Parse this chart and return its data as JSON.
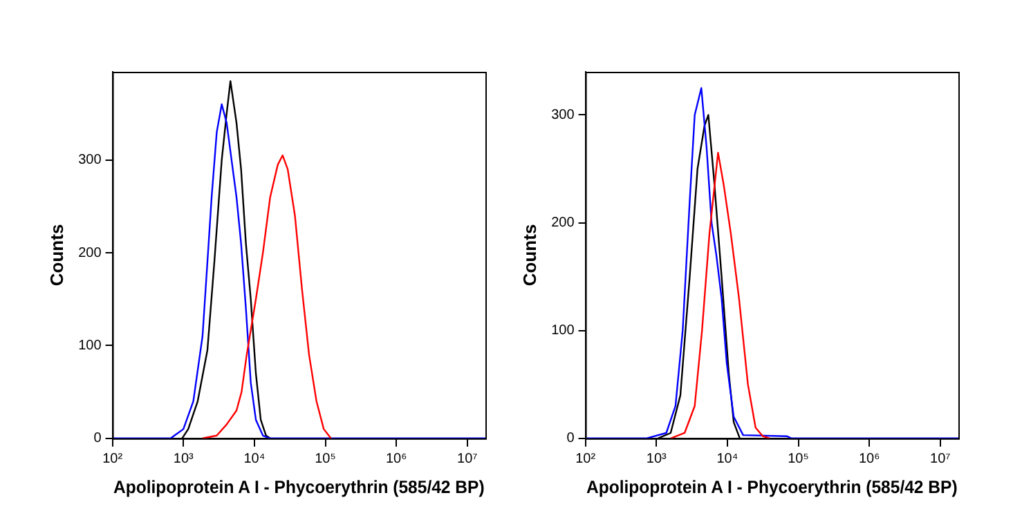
{
  "chart_data": [
    {
      "type": "line",
      "xlabel": "Apolipoprotein A I - Phycoerythrin (585/42 BP)",
      "ylabel": "Counts",
      "log": "x",
      "grid": false,
      "legend": false,
      "marker": "none",
      "line_style": "solid",
      "xlim": [
        100,
        18000000
      ],
      "ylim": [
        0,
        395
      ],
      "xticks": [
        {
          "value": 100,
          "label": "10²"
        },
        {
          "value": 1000,
          "label": "10³"
        },
        {
          "value": 10000,
          "label": "10⁴"
        },
        {
          "value": 100000,
          "label": "10⁵"
        },
        {
          "value": 1000000,
          "label": "10⁶"
        },
        {
          "value": 10000000,
          "label": "10⁷"
        }
      ],
      "yticks": [
        0,
        100,
        200,
        300
      ],
      "series": [
        {
          "color": "#ff0000",
          "x": [
            1860,
            2950,
            4070,
            5600,
            6600,
            7800,
            10500,
            13200,
            16700,
            21400,
            25000,
            29500,
            37300,
            47000,
            59000,
            75000,
            95000,
            120000
          ],
          "values": [
            0,
            3,
            15,
            30,
            50,
            90,
            150,
            200,
            260,
            295,
            305,
            290,
            240,
            160,
            90,
            40,
            10,
            0
          ]
        },
        {
          "color": "#0000ff",
          "x": [
            100,
            660,
            1000,
            1380,
            1860,
            2180,
            2500,
            2950,
            3470,
            4070,
            4770,
            5600,
            6500,
            7600,
            8900,
            10500,
            13200,
            16700,
            18000000
          ],
          "values": [
            0,
            0,
            10,
            40,
            110,
            190,
            260,
            330,
            360,
            340,
            300,
            260,
            210,
            140,
            60,
            20,
            3,
            0,
            0
          ]
        },
        {
          "color": "#000000",
          "x": [
            960,
            1170,
            1590,
            2180,
            2730,
            3470,
            4070,
            4600,
            5600,
            6500,
            7600,
            8900,
            10500,
            12300,
            14600,
            16700
          ],
          "values": [
            0,
            10,
            40,
            95,
            190,
            300,
            350,
            385,
            340,
            290,
            210,
            150,
            70,
            20,
            3,
            0
          ]
        }
      ]
    },
    {
      "type": "line",
      "xlabel": "Apolipoprotein A I - Phycoerythrin (585/42 BP)",
      "ylabel": "Counts",
      "log": "x",
      "grid": false,
      "legend": false,
      "marker": "none",
      "line_style": "solid",
      "xlim": [
        100,
        18000000
      ],
      "ylim": [
        0,
        340
      ],
      "xticks": [
        {
          "value": 100,
          "label": "10²"
        },
        {
          "value": 1000,
          "label": "10³"
        },
        {
          "value": 10000,
          "label": "10⁴"
        },
        {
          "value": 100000,
          "label": "10⁵"
        },
        {
          "value": 1000000,
          "label": "10⁶"
        },
        {
          "value": 10000000,
          "label": "10⁷"
        }
      ],
      "yticks": [
        0,
        100,
        200,
        300
      ],
      "series": [
        {
          "color": "#ff0000",
          "x": [
            1590,
            2500,
            3470,
            4400,
            5600,
            7400,
            8900,
            11200,
            14600,
            19500,
            25000,
            31600,
            39800
          ],
          "values": [
            0,
            5,
            30,
            100,
            190,
            265,
            235,
            190,
            130,
            50,
            10,
            2,
            0
          ]
        },
        {
          "color": "#0000ff",
          "x": [
            100,
            720,
            1380,
            1860,
            2350,
            2950,
            3470,
            4300,
            5100,
            6000,
            7000,
            8300,
            9800,
            12300,
            16700,
            69000,
            80000,
            18000000
          ],
          "values": [
            0,
            0,
            5,
            30,
            100,
            220,
            300,
            325,
            270,
            200,
            170,
            130,
            70,
            20,
            3,
            2,
            0,
            0
          ]
        },
        {
          "color": "#000000",
          "x": [
            1050,
            1590,
            2180,
            2950,
            3800,
            4770,
            5400,
            6500,
            8300,
            10500,
            12300,
            15000
          ],
          "values": [
            0,
            5,
            40,
            150,
            250,
            290,
            300,
            240,
            150,
            60,
            15,
            0
          ]
        }
      ]
    }
  ]
}
